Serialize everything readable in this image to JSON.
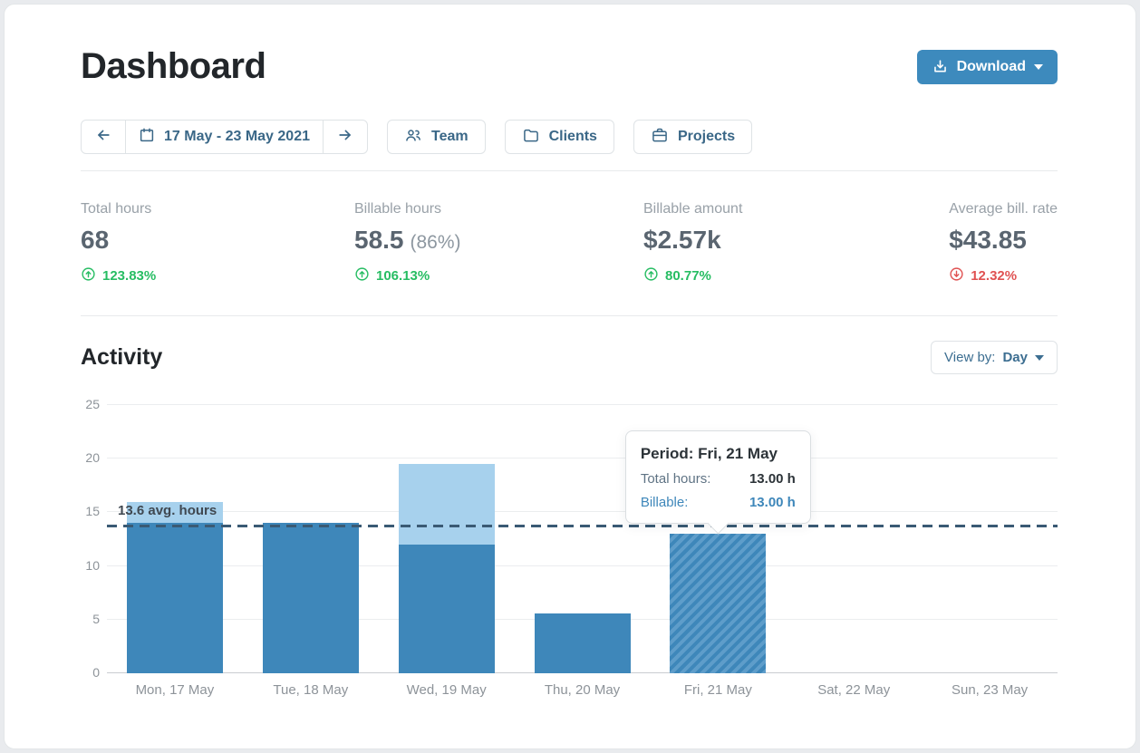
{
  "window": {
    "title": "Dashboard"
  },
  "header": {
    "download_label": "Download"
  },
  "toolbar": {
    "date_range": "17 May - 23 May 2021",
    "filters": [
      {
        "label": "Team"
      },
      {
        "label": "Clients"
      },
      {
        "label": "Projects"
      }
    ]
  },
  "stats": [
    {
      "label": "Total hours",
      "value": "68",
      "extra": "",
      "change": "123.83%",
      "direction": "up"
    },
    {
      "label": "Billable hours",
      "value": "58.5",
      "extra": "(86%)",
      "change": "106.13%",
      "direction": "up"
    },
    {
      "label": "Billable amount",
      "value": "$2.57k",
      "extra": "",
      "change": "80.77%",
      "direction": "up"
    },
    {
      "label": "Average bill. rate",
      "value": "$43.85",
      "extra": "",
      "change": "12.32%",
      "direction": "down"
    }
  ],
  "activity": {
    "title": "Activity",
    "view_by_prefix": "View by:",
    "view_by_value": "Day"
  },
  "chart_data": {
    "type": "bar",
    "categories": [
      "Mon, 17 May",
      "Tue, 18 May",
      "Wed, 19 May",
      "Thu, 20 May",
      "Fri, 21 May",
      "Sat, 22 May",
      "Sun, 23 May"
    ],
    "series": [
      {
        "name": "Total hours",
        "values": [
          16,
          14,
          19.5,
          5.6,
          13,
          0,
          0
        ]
      },
      {
        "name": "Billable hours",
        "values": [
          14,
          14,
          12,
          5.6,
          13,
          0,
          0
        ]
      }
    ],
    "ylim": [
      0,
      25
    ],
    "yticks": [
      0,
      5,
      10,
      15,
      20,
      25
    ],
    "grid": "horizontal",
    "legend": "none",
    "average": 13.6,
    "average_label": "13.6 avg. hours",
    "highlighted_index": 4,
    "tooltip": {
      "title": "Period: Fri, 21 May",
      "rows": [
        {
          "label": "Total hours:",
          "value": "13.00 h"
        },
        {
          "label": "Billable:",
          "value": "13.00 h"
        }
      ]
    }
  },
  "colors": {
    "accent_blue": "#3d8abd",
    "bar_billable": "#3e87ba",
    "bar_nonbillable": "#a7d1ed",
    "bar_hatch_alt": "#5e9dca",
    "positive_green": "#27bd63",
    "negative_red": "#e05252",
    "steel_text": "#3a6787",
    "avg_line": "#3a5a74"
  }
}
